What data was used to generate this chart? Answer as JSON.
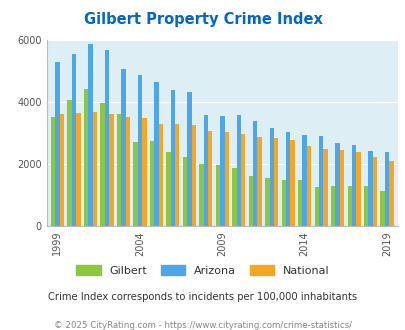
{
  "title": "Gilbert Property Crime Index",
  "years": [
    1999,
    2000,
    2001,
    2002,
    2003,
    2004,
    2005,
    2006,
    2007,
    2008,
    2009,
    2010,
    2011,
    2012,
    2013,
    2014,
    2015,
    2016,
    2017,
    2018,
    2019
  ],
  "gilbert": [
    3500,
    4050,
    4400,
    3950,
    3600,
    2700,
    2750,
    2380,
    2230,
    2000,
    1950,
    1880,
    1600,
    1550,
    1480,
    1470,
    1270,
    1300,
    1300,
    1280,
    1120
  ],
  "arizona": [
    5280,
    5530,
    5850,
    5660,
    5060,
    4870,
    4640,
    4380,
    4310,
    3560,
    3540,
    3560,
    3380,
    3150,
    3020,
    2940,
    2900,
    2680,
    2620,
    2410,
    2380
  ],
  "national": [
    3620,
    3650,
    3680,
    3620,
    3520,
    3480,
    3300,
    3280,
    3250,
    3060,
    3020,
    2950,
    2870,
    2830,
    2760,
    2560,
    2480,
    2440,
    2380,
    2220,
    2080
  ],
  "bar_colors": {
    "gilbert": "#8dc63f",
    "arizona": "#4da6e8",
    "national": "#f5a623"
  },
  "plot_bg": "#ddeef5",
  "ylim": [
    0,
    6000
  ],
  "yticks": [
    0,
    2000,
    4000,
    6000
  ],
  "title_color": "#0066cc",
  "subtitle": "Crime Index corresponds to incidents per 100,000 inhabitants",
  "footer": "© 2025 CityRating.com - https://www.cityrating.com/crime-statistics/",
  "subtitle_color": "#333333",
  "footer_color": "#888888",
  "tick_years": [
    1999,
    2004,
    2009,
    2014,
    2019
  ]
}
